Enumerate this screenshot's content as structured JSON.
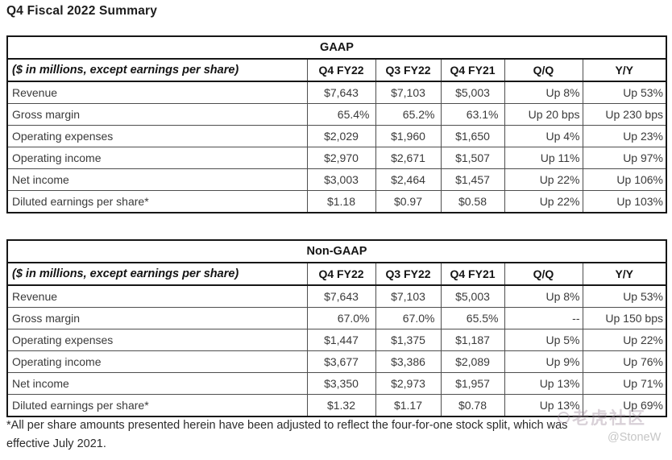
{
  "page_title": "Q4 Fiscal 2022 Summary",
  "tables": [
    {
      "group_header": "GAAP",
      "row_header_label": "($ in millions, except earnings per share)",
      "columns": [
        "Q4 FY22",
        "Q3 FY22",
        "Q4 FY21",
        "Q/Q",
        "Y/Y"
      ],
      "rows": [
        {
          "label": "Revenue",
          "values": [
            "$7,643",
            "$7,103",
            "$5,003",
            "Up 8%",
            "Up 53%"
          ]
        },
        {
          "label": "Gross margin",
          "values": [
            "65.4%",
            "65.2%",
            "63.1%",
            "Up 20 bps",
            "Up 230 bps"
          ]
        },
        {
          "label": "Operating expenses",
          "values": [
            "$2,029",
            "$1,960",
            "$1,650",
            "Up 4%",
            "Up 23%"
          ]
        },
        {
          "label": "Operating income",
          "values": [
            "$2,970",
            "$2,671",
            "$1,507",
            "Up 11%",
            "Up 97%"
          ]
        },
        {
          "label": "Net income",
          "values": [
            "$3,003",
            "$2,464",
            "$1,457",
            "Up 22%",
            "Up 106%"
          ]
        },
        {
          "label": "Diluted earnings per share*",
          "values": [
            "$1.18",
            "$0.97",
            "$0.58",
            "Up 22%",
            "Up 103%"
          ]
        }
      ]
    },
    {
      "group_header": "Non-GAAP",
      "row_header_label": "($ in millions, except earnings per share)",
      "columns": [
        "Q4 FY22",
        "Q3 FY22",
        "Q4 FY21",
        "Q/Q",
        "Y/Y"
      ],
      "rows": [
        {
          "label": "Revenue",
          "values": [
            "$7,643",
            "$7,103",
            "$5,003",
            "Up 8%",
            "Up 53%"
          ]
        },
        {
          "label": "Gross margin",
          "values": [
            "67.0%",
            "67.0%",
            "65.5%",
            "--",
            "Up 150 bps"
          ]
        },
        {
          "label": "Operating expenses",
          "values": [
            "$1,447",
            "$1,375",
            "$1,187",
            "Up 5%",
            "Up 22%"
          ]
        },
        {
          "label": "Operating income",
          "values": [
            "$3,677",
            "$3,386",
            "$2,089",
            "Up 9%",
            "Up 76%"
          ]
        },
        {
          "label": "Net income",
          "values": [
            "$3,350",
            "$2,973",
            "$1,957",
            "Up 13%",
            "Up 71%"
          ]
        },
        {
          "label": "Diluted earnings per share*",
          "values": [
            "$1.32",
            "$1.17",
            "$0.78",
            "Up 13%",
            "Up 69%"
          ]
        }
      ]
    }
  ],
  "footnote": {
    "line1": "*All per share amounts presented herein have been adjusted to reflect the four-for-one stock split, which was",
    "line2": "effective July 2021."
  },
  "watermark": {
    "community": "老虎社区",
    "handle": "@StoneW"
  },
  "colors": {
    "border_strong": "#161616",
    "border_light": "#4e4e4e",
    "text": "#3a3a3a",
    "watermark_gray": "#c6c6c6"
  }
}
